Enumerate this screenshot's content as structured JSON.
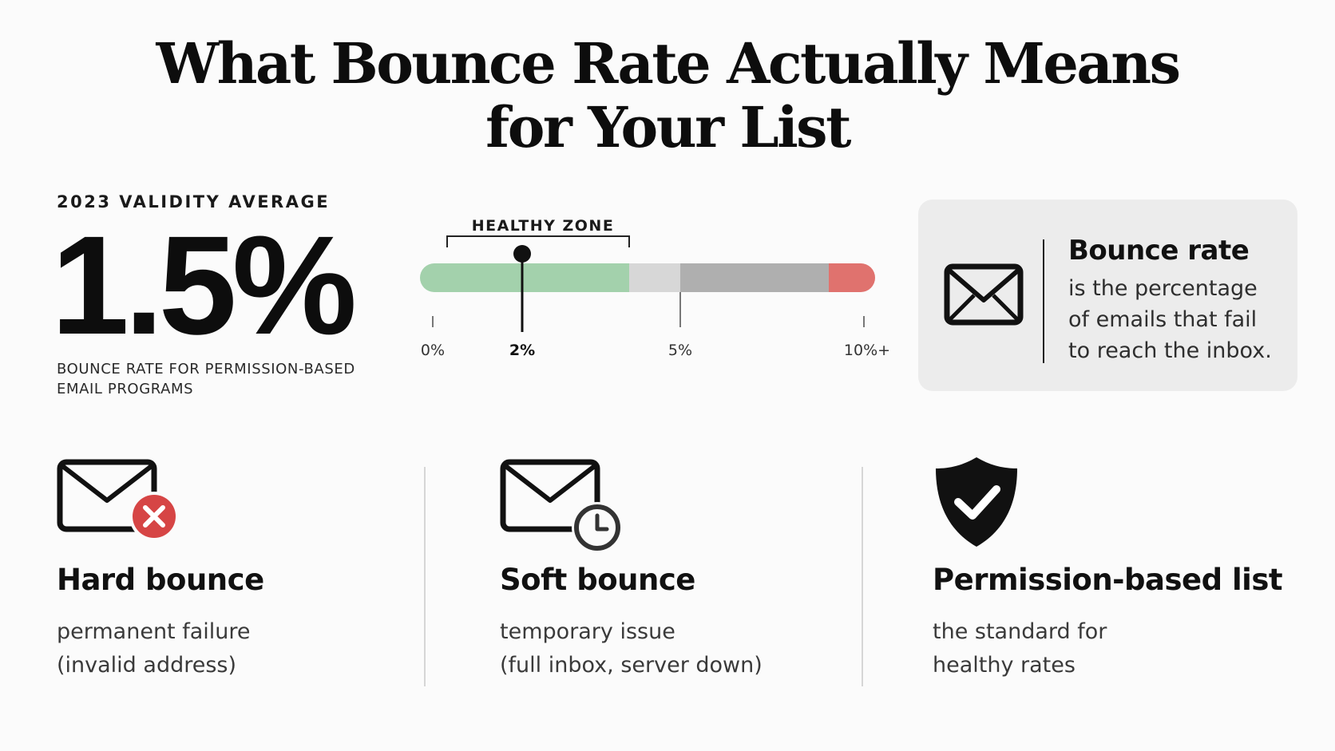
{
  "title": {
    "line1": "What Bounce Rate Actually Means",
    "line2": "for Your List"
  },
  "stat": {
    "caption": "2023 VALIDITY AVERAGE",
    "value": "1.5%",
    "description_line1": "BOUNCE RATE FOR PERMISSION-BASED",
    "description_line2": "EMAIL PROGRAMS"
  },
  "scale": {
    "zone_label": "HEALTHY ZONE",
    "ticks": [
      "0%",
      "2%",
      "5%",
      "10%+"
    ],
    "marker_value": 2,
    "healthy_range": [
      0,
      4
    ],
    "colors": {
      "healthy": "#8fc79a",
      "neutral": "#cfcfcf",
      "elevated": "#9e9e9e",
      "danger": "#d9534f"
    }
  },
  "definition": {
    "icon": "envelope-icon",
    "title": "Bounce rate",
    "line1": "is the percentage",
    "line2": "of emails that fail",
    "line3": "to reach the inbox."
  },
  "features": [
    {
      "icon": "envelope-x-icon",
      "title": "Hard bounce",
      "line1": "permanent failure",
      "line2": "(invalid address)"
    },
    {
      "icon": "envelope-clock-icon",
      "title": "Soft bounce",
      "line1": "temporary issue",
      "line2": "(full inbox, server down)"
    },
    {
      "icon": "shield-check-icon",
      "title": "Permission-based list",
      "line1": "the standard for",
      "line2": "healthy rates"
    }
  ]
}
